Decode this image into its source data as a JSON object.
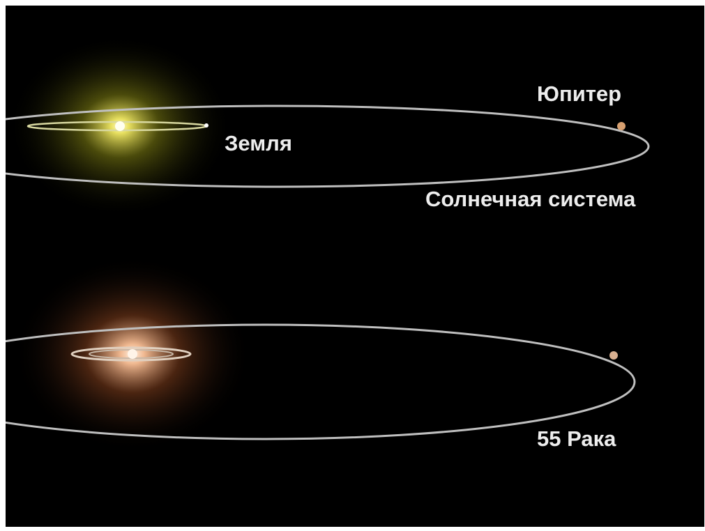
{
  "labels": {
    "jupiter": "Юпитер",
    "earth": "Земля",
    "solar_system": "Солнечная система",
    "cancri": "55 Рака"
  }
}
